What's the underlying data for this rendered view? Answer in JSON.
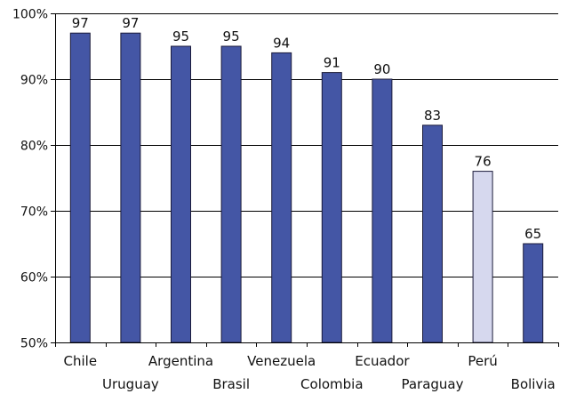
{
  "chart_data": {
    "type": "bar",
    "categories": [
      "Chile",
      "Uruguay",
      "Argentina",
      "Brasil",
      "Venezuela",
      "Colombia",
      "Ecuador",
      "Paraguay",
      "Perú",
      "Bolivia"
    ],
    "values": [
      97,
      97,
      95,
      95,
      94,
      91,
      90,
      83,
      76,
      65
    ],
    "data_labels": [
      "97",
      "97",
      "95",
      "95",
      "94",
      "91",
      "90",
      "83",
      "76",
      "65"
    ],
    "ylim": [
      50,
      100
    ],
    "yticks": [
      50,
      60,
      70,
      80,
      90,
      100
    ],
    "ytick_labels": [
      "50%",
      "60%",
      "70%",
      "80%",
      "90%",
      "100%"
    ],
    "grid": true,
    "legend": "none",
    "colors": {
      "bar": "#4456a5",
      "bar_highlight": "#d6d8ee",
      "bar_stroke": "#1b1b3a",
      "grid": "#000000"
    },
    "highlight_index": 8
  }
}
